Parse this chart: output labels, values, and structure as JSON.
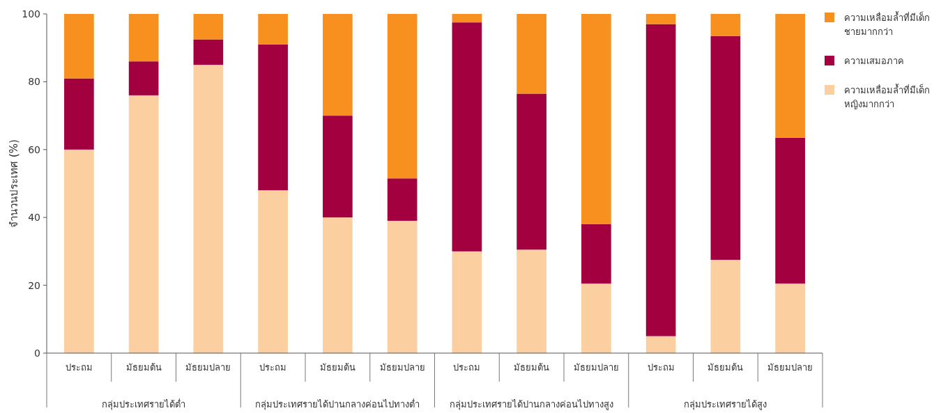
{
  "chart_data": {
    "type": "bar",
    "stacked": true,
    "ylabel": "จำนวนประเทศ (%)",
    "ylim": [
      0,
      100
    ],
    "yticks": [
      0,
      20,
      40,
      60,
      80,
      100
    ],
    "legend": "top right",
    "grid": false,
    "categories": [
      "ประถม",
      "มัธยมต้น",
      "มัธยมปลาย",
      "ประถม",
      "มัธยมต้น",
      "มัธยมปลาย",
      "ประถม",
      "มัธยมต้น",
      "มัธยมปลาย",
      "ประถม",
      "มัธยมต้น",
      "มัธยมปลาย"
    ],
    "annotations": [
      "กลุ่มประเทศรายได้ต่ำ",
      "กลุ่มประเทศรายได้ปานกลางค่อนไปทางต่ำ",
      "กลุ่มประเทศรายได้ปานกลางค่อนไปทางสูง",
      "กลุ่มประเทศรายได้สูง"
    ],
    "series": [
      {
        "name": "ความเหลื่อมล้ำที่มีเด็กหญิงมากกว่า",
        "color": "#fbcf9f",
        "values": [
          60,
          76,
          85,
          48,
          40,
          39,
          30,
          30.5,
          20.5,
          5,
          27.5,
          20.5
        ]
      },
      {
        "name": "ความเสมอภาค",
        "color": "#a3003f",
        "values": [
          21,
          10,
          7.5,
          43,
          30,
          12.5,
          67.5,
          46,
          17.5,
          92,
          66,
          43
        ]
      },
      {
        "name": "ความเหลื่อมล้ำที่มีเด็กชายมากกว่า",
        "color": "#f7901e",
        "values": [
          19,
          14,
          7.5,
          9,
          30,
          48.5,
          2.5,
          23.5,
          62,
          3,
          6.5,
          36.5
        ]
      }
    ]
  }
}
